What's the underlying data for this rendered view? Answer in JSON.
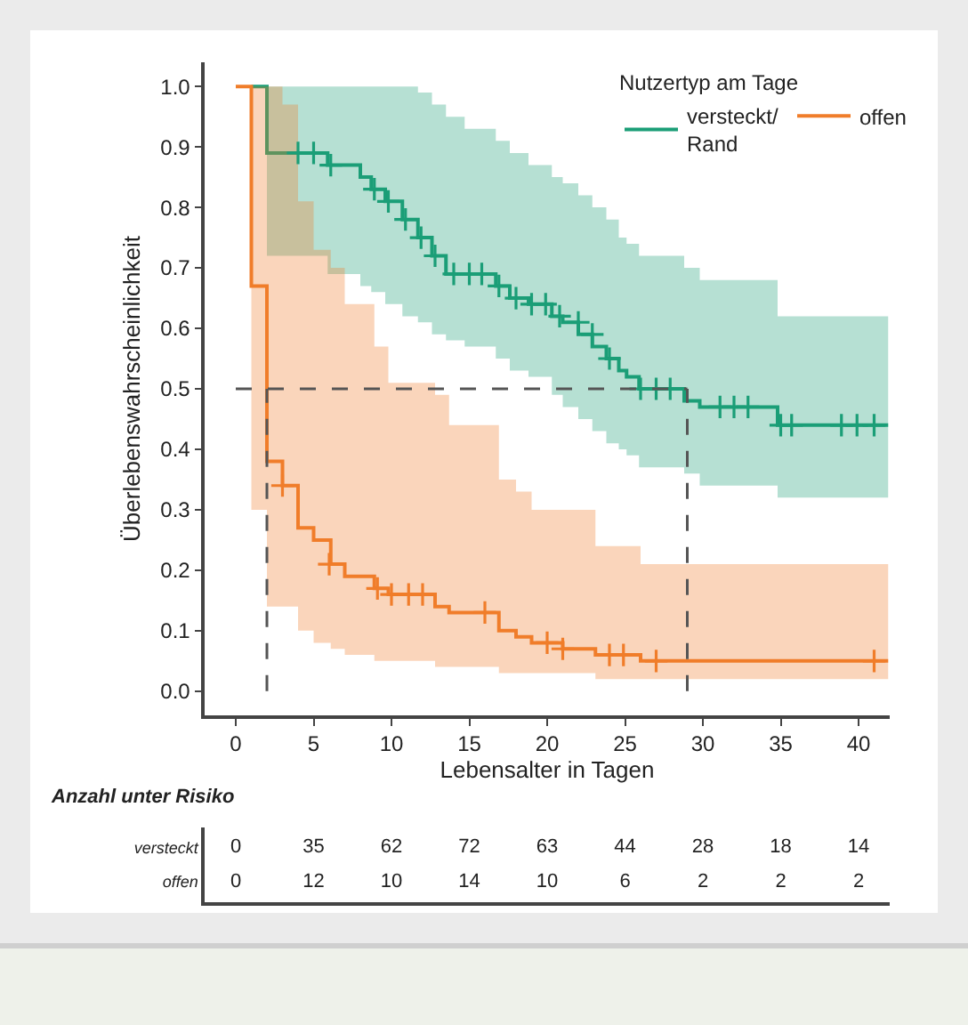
{
  "chart_data": [
    {
      "type": "step",
      "xlabel": "Lebensalter in Tagen",
      "ylabel": "Überlebenswahrscheinlichkeit",
      "legend_title": "Nutzertyp am Tage",
      "legend": "top right",
      "grid": false,
      "xlim": [
        -2,
        42
      ],
      "ylim": [
        -0.04,
        1.04
      ],
      "xticks": [
        0,
        5,
        10,
        15,
        20,
        25,
        30,
        35,
        40
      ],
      "yticks": [
        {
          "value": 0,
          "label": "0.0"
        },
        {
          "value": 0.1,
          "label": "0.1"
        },
        {
          "value": 0.2,
          "label": "0.2"
        },
        {
          "value": 0.3,
          "label": "0.3"
        },
        {
          "value": 0.4,
          "label": "0.4"
        },
        {
          "value": 0.5,
          "label": "0.5"
        },
        {
          "value": 0.6,
          "label": "0.6"
        },
        {
          "value": 0.7,
          "label": "0.7"
        },
        {
          "value": 0.8,
          "label": "0.8"
        },
        {
          "value": 0.9,
          "label": "0.9"
        },
        {
          "value": 1,
          "label": "1.0"
        }
      ],
      "ref_lines": [
        {
          "axis": "y",
          "value": 0.5,
          "color": "#555555",
          "line_style": "dashed"
        },
        {
          "axis": "x",
          "value": 2,
          "color": "#555555",
          "line_style": "dashed"
        },
        {
          "axis": "x",
          "value": 29,
          "color": "#555555",
          "line_style": "dashed"
        }
      ],
      "series": [
        {
          "name": "versteckt/\nRand",
          "type": "step",
          "color": "#1b9e77",
          "marker": "none",
          "x": [
            1,
            2,
            5.9,
            8,
            8.7,
            9.6,
            10.7,
            11.7,
            12.6,
            13.5,
            14.7,
            16.7,
            17.6,
            18.8,
            20.3,
            21,
            22,
            22.9,
            23.8,
            24.6,
            25.1,
            25.9,
            28.8,
            29.8,
            34.8,
            41.9
          ],
          "values": [
            1,
            0.89,
            0.87,
            0.85,
            0.83,
            0.81,
            0.78,
            0.75,
            0.72,
            0.69,
            0.69,
            0.67,
            0.65,
            0.64,
            0.62,
            0.61,
            0.59,
            0.57,
            0.55,
            0.53,
            0.52,
            0.5,
            0.48,
            0.47,
            0.44,
            0.44
          ],
          "upper": [
            1,
            1,
            1,
            1,
            1,
            1,
            1,
            0.99,
            0.97,
            0.95,
            0.93,
            0.91,
            0.89,
            0.87,
            0.85,
            0.84,
            0.82,
            0.8,
            0.78,
            0.75,
            0.74,
            0.72,
            0.7,
            0.68,
            0.62,
            0.62
          ],
          "lower": [
            1,
            0.72,
            0.69,
            0.67,
            0.66,
            0.64,
            0.62,
            0.61,
            0.59,
            0.58,
            0.57,
            0.55,
            0.53,
            0.52,
            0.49,
            0.47,
            0.45,
            0.43,
            0.41,
            0.4,
            0.39,
            0.37,
            0.36,
            0.34,
            0.32,
            0.32
          ]
        },
        {
          "name": "offen",
          "type": "step",
          "color": "#f07d2a",
          "marker": "none",
          "x": [
            0,
            1,
            2,
            3,
            4,
            5,
            6.1,
            7,
            8.9,
            9.8,
            12.8,
            13.7,
            16.9,
            18,
            19,
            21,
            23.1,
            26,
            41.9
          ],
          "values": [
            1,
            0.67,
            0.38,
            0.34,
            0.27,
            0.25,
            0.21,
            0.19,
            0.17,
            0.16,
            0.14,
            0.13,
            0.1,
            0.09,
            0.08,
            0.07,
            0.06,
            0.05,
            0.05
          ],
          "upper": [
            1,
            1,
            1,
            0.97,
            0.81,
            0.73,
            0.7,
            0.64,
            0.57,
            0.51,
            0.49,
            0.44,
            0.35,
            0.33,
            0.3,
            0.3,
            0.24,
            0.21,
            0.21
          ],
          "lower": [
            1,
            0.3,
            0.14,
            0.14,
            0.1,
            0.08,
            0.07,
            0.06,
            0.05,
            0.05,
            0.04,
            0.04,
            0.03,
            0.03,
            0.03,
            0.03,
            0.02,
            0.02,
            0.02
          ]
        },
        {
          "type": "scatter",
          "color": "#1b9e77",
          "marker": "cross",
          "x": [
            4,
            5,
            6.1,
            8.9,
            9.8,
            10.9,
            11.9,
            12.8,
            14,
            15,
            15.8,
            16.9,
            18,
            19,
            19.9,
            20.8,
            22,
            22.9,
            24,
            26,
            27,
            27.9,
            31.1,
            32,
            32.9,
            35,
            35.7,
            38.9,
            39.9,
            41
          ],
          "values": [
            0.89,
            0.89,
            0.87,
            0.83,
            0.81,
            0.78,
            0.75,
            0.72,
            0.69,
            0.69,
            0.69,
            0.67,
            0.65,
            0.64,
            0.64,
            0.62,
            0.61,
            0.59,
            0.55,
            0.5,
            0.5,
            0.5,
            0.47,
            0.47,
            0.47,
            0.44,
            0.44,
            0.44,
            0.44,
            0.44
          ]
        },
        {
          "type": "scatter",
          "color": "#f07d2a",
          "marker": "cross",
          "x": [
            3,
            6,
            9.1,
            10,
            11.1,
            12,
            16,
            20,
            21,
            24,
            24.9,
            27,
            41
          ],
          "values": [
            0.34,
            0.21,
            0.17,
            0.16,
            0.16,
            0.16,
            0.13,
            0.08,
            0.07,
            0.06,
            0.06,
            0.05,
            0.05
          ]
        }
      ]
    },
    {
      "type": "heatmap",
      "title": "Anzahl unter Risiko",
      "categories": [
        null,
        null,
        null,
        null,
        null,
        null,
        null,
        null,
        null
      ],
      "y_categories": [
        "versteckt",
        "offen"
      ],
      "cells": [
        [
          0,
          35,
          62,
          72,
          63,
          44,
          28,
          18,
          14
        ],
        [
          0,
          12,
          10,
          14,
          10,
          6,
          2,
          2,
          2
        ]
      ],
      "data_labels": true
    }
  ]
}
